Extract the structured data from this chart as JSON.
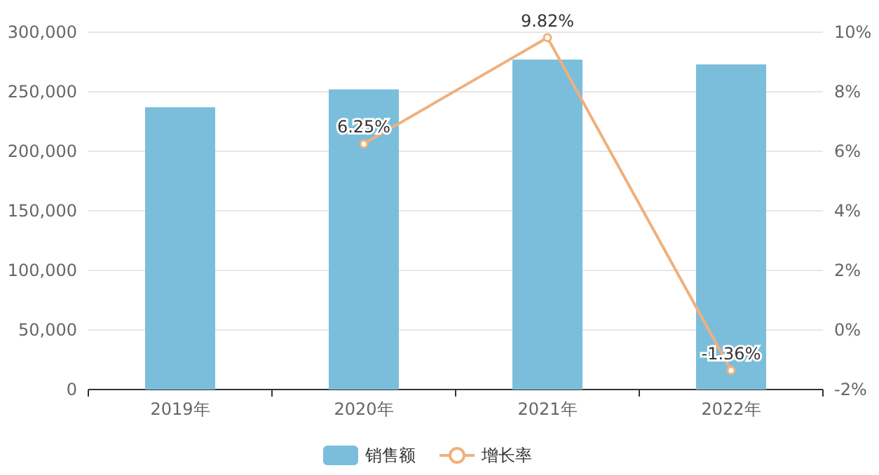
{
  "chart_data": {
    "type": "bar",
    "categories": [
      "2019年",
      "2020年",
      "2021年",
      "2022年"
    ],
    "series": [
      {
        "name": "销售额",
        "color": "#7bbedb",
        "values": [
          237000,
          252000,
          277000,
          273000
        ]
      },
      {
        "name": "增长率",
        "type": "line",
        "axis": "y2",
        "color": "#efb07c",
        "marker": "circle",
        "values": [
          null,
          6.25,
          9.82,
          -1.36
        ],
        "value_labels": [
          null,
          "6.25%",
          "9.82%",
          "-1.36%"
        ]
      }
    ],
    "ylim": [
      0,
      300000
    ],
    "yticks": [
      0,
      {
        "value": 50000,
        "label": "50,000"
      },
      {
        "value": 100000,
        "label": "100,000"
      },
      {
        "value": 150000,
        "label": "150,000"
      },
      {
        "value": 200000,
        "label": "200,000"
      },
      {
        "value": 250000,
        "label": "250,000"
      },
      {
        "value": 300000,
        "label": "300,000"
      }
    ],
    "y2lim": [
      -2,
      10
    ],
    "y2ticks": [
      {
        "value": -2,
        "label": "-2%"
      },
      {
        "value": 0,
        "label": "0%"
      },
      {
        "value": 2,
        "label": "2%"
      },
      {
        "value": 4,
        "label": "4%"
      },
      {
        "value": 6,
        "label": "6%"
      },
      {
        "value": 8,
        "label": "8%"
      },
      {
        "value": 10,
        "label": "10%"
      }
    ],
    "grid": "y",
    "legend": "bottom"
  }
}
